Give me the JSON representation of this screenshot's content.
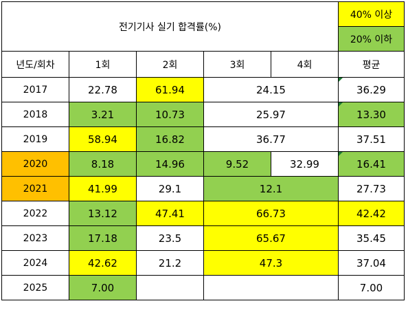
{
  "title": "전기기사 실기 합격률(%)",
  "legend": {
    "high_label": "40% 이상",
    "low_label": "20% 이하",
    "high_color": "#ffff00",
    "low_color": "#92d050"
  },
  "headers": {
    "year": "년도/회차",
    "r1": "1회",
    "r2": "2회",
    "r3": "3회",
    "r4": "4회",
    "avg": "평균"
  },
  "rows": [
    {
      "year": "2017",
      "r1": "22.78",
      "r2": "61.94",
      "r34": "24.15",
      "avg": "36.29"
    },
    {
      "year": "2018",
      "r1": "3.21",
      "r2": "10.73",
      "r34": "25.97",
      "avg": "13.30"
    },
    {
      "year": "2019",
      "r1": "58.94",
      "r2": "16.82",
      "r34": "36.77",
      "avg": "37.51"
    },
    {
      "year": "2020",
      "r1": "8.18",
      "r2": "14.96",
      "r3": "9.52",
      "r4": "32.99",
      "avg": "16.41"
    },
    {
      "year": "2021",
      "r1": "41.99",
      "r2": "29.1",
      "r34": "12.1",
      "avg": "27.73"
    },
    {
      "year": "2022",
      "r1": "13.12",
      "r2": "47.41",
      "r34": "66.73",
      "avg": "42.42"
    },
    {
      "year": "2023",
      "r1": "17.18",
      "r2": "23.5",
      "r34": "65.67",
      "avg": "35.45"
    },
    {
      "year": "2024",
      "r1": "42.62",
      "r2": "21.2",
      "r34": "47.3",
      "avg": "37.04"
    },
    {
      "year": "2025",
      "r1": "7.00",
      "r2": "",
      "r34": "",
      "avg": "7.00"
    }
  ]
}
